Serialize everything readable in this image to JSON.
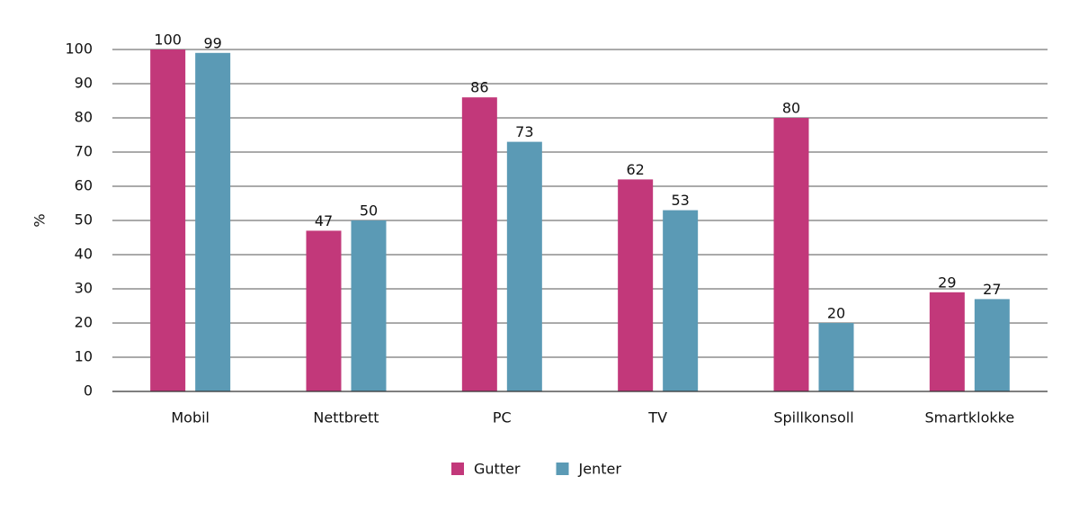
{
  "chart_data": {
    "type": "bar",
    "categories": [
      "Mobil",
      "Nettbrett",
      "PC",
      "TV",
      "Spillkonsoll",
      "Smartklokke"
    ],
    "series": [
      {
        "name": "Gutter",
        "color": "#c2387a",
        "values": [
          100,
          47,
          86,
          62,
          80,
          29
        ]
      },
      {
        "name": "Jenter",
        "color": "#5b9ab5",
        "values": [
          99,
          50,
          73,
          53,
          20,
          27
        ]
      }
    ],
    "y_label": "%",
    "ylim": [
      0,
      100
    ],
    "yticks": [
      0,
      10,
      20,
      30,
      40,
      50,
      60,
      70,
      80,
      90,
      100
    ],
    "grid": true,
    "legend": "bottom"
  }
}
